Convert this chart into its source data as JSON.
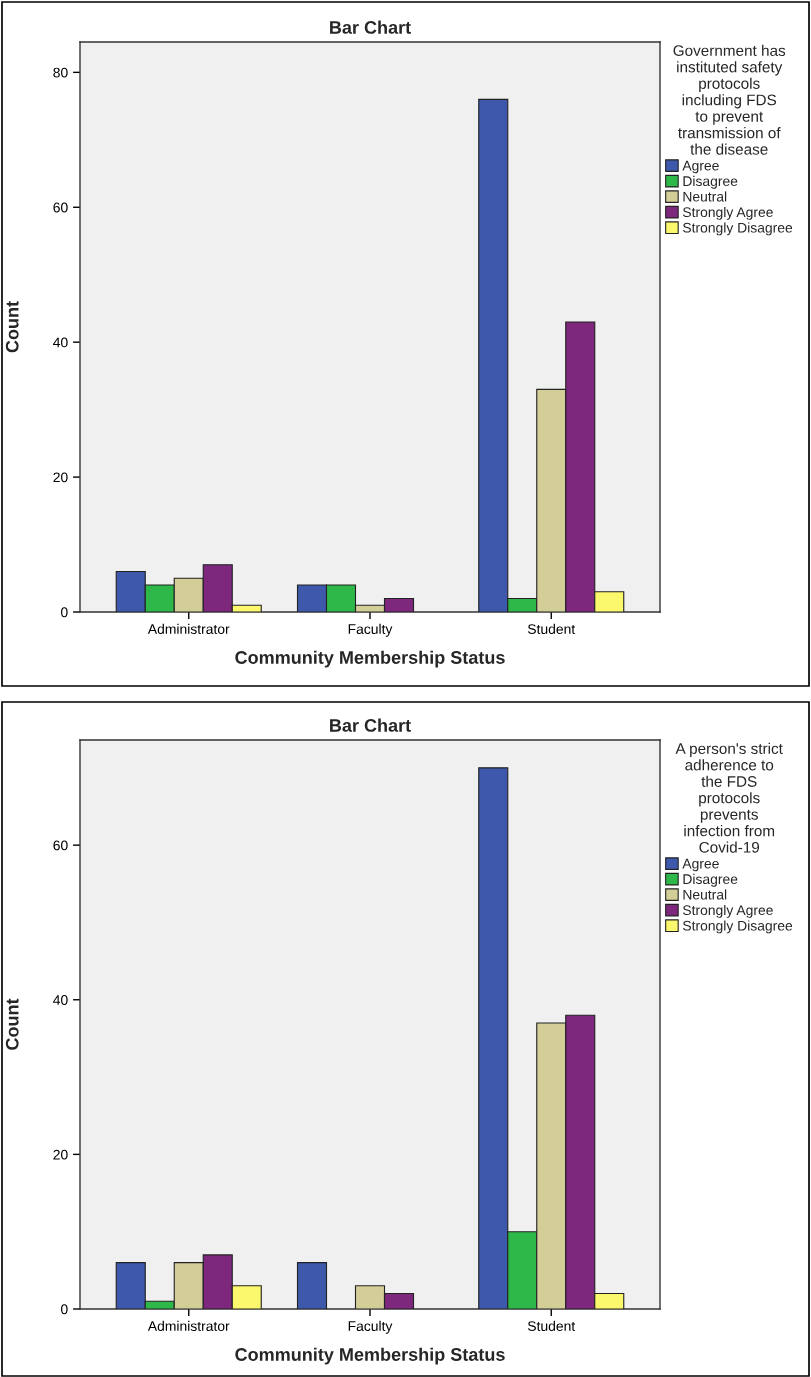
{
  "chart_data": [
    {
      "type": "bar",
      "title": "Bar Chart",
      "xlabel": "Community Membership Status",
      "ylabel": "Count",
      "legend_title": "Government has\ninstituted safety\nprotocols\nincluding FDS\nto prevent\ntransmission of\nthe disease",
      "categories": [
        "Administrator",
        "Faculty",
        "Student"
      ],
      "series": [
        {
          "name": "Agree",
          "color": "#3e58ac",
          "values": [
            6,
            4,
            76
          ]
        },
        {
          "name": "Disagree",
          "color": "#2fb84a",
          "values": [
            4,
            4,
            2
          ]
        },
        {
          "name": "Neutral",
          "color": "#d3ce97",
          "values": [
            5,
            1,
            33
          ]
        },
        {
          "name": "Strongly Agree",
          "color": "#7d287d",
          "values": [
            7,
            2,
            43
          ]
        },
        {
          "name": "Strongly Disagree",
          "color": "#fbf86d",
          "values": [
            1,
            0,
            3
          ]
        }
      ],
      "ylim": [
        0,
        84.5
      ],
      "yticks": [
        0,
        20,
        40,
        60,
        80
      ],
      "grid": false,
      "legend": "right"
    },
    {
      "type": "bar",
      "title": "Bar Chart",
      "xlabel": "Community Membership Status",
      "ylabel": "Count",
      "legend_title": "A person's strict\nadherence to\nthe FDS\nprotocols\nprevents\ninfection from\nCovid-19",
      "categories": [
        "Administrator",
        "Faculty",
        "Student"
      ],
      "series": [
        {
          "name": "Agree",
          "color": "#3e58ac",
          "values": [
            6,
            6,
            70
          ]
        },
        {
          "name": "Disagree",
          "color": "#2fb84a",
          "values": [
            1,
            0,
            10
          ]
        },
        {
          "name": "Neutral",
          "color": "#d3ce97",
          "values": [
            6,
            3,
            37
          ]
        },
        {
          "name": "Strongly Agree",
          "color": "#7d287d",
          "values": [
            7,
            2,
            38
          ]
        },
        {
          "name": "Strongly Disagree",
          "color": "#fbf86d",
          "values": [
            3,
            0,
            2
          ]
        }
      ],
      "ylim": [
        0,
        73.6
      ],
      "yticks": [
        0,
        20,
        40,
        60
      ],
      "grid": false,
      "legend": "right"
    }
  ]
}
